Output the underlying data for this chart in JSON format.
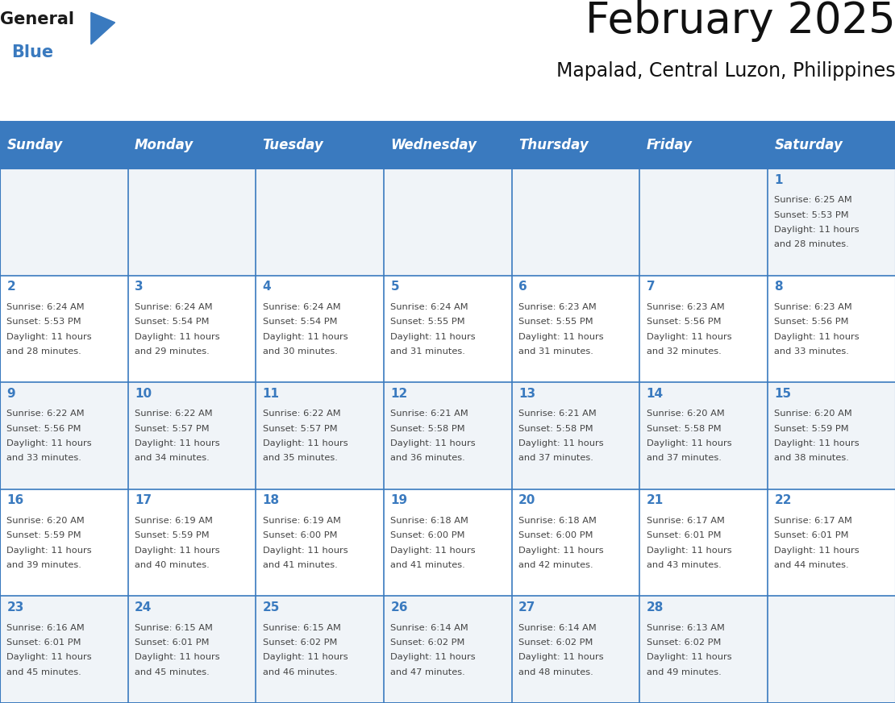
{
  "title": "February 2025",
  "subtitle": "Mapalad, Central Luzon, Philippines",
  "header_color": "#3a7abf",
  "header_text_color": "#ffffff",
  "cell_bg_color": "#ffffff",
  "cell_bg_alt": "#f0f4f8",
  "border_color": "#3a7abf",
  "text_color": "#444444",
  "day_headers": [
    "Sunday",
    "Monday",
    "Tuesday",
    "Wednesday",
    "Thursday",
    "Friday",
    "Saturday"
  ],
  "calendar_data": [
    [
      null,
      null,
      null,
      null,
      null,
      null,
      {
        "day": 1,
        "sunrise": "6:25 AM",
        "sunset": "5:53 PM",
        "daylight": "11 hours and 28 minutes."
      }
    ],
    [
      {
        "day": 2,
        "sunrise": "6:24 AM",
        "sunset": "5:53 PM",
        "daylight": "11 hours and 28 minutes."
      },
      {
        "day": 3,
        "sunrise": "6:24 AM",
        "sunset": "5:54 PM",
        "daylight": "11 hours and 29 minutes."
      },
      {
        "day": 4,
        "sunrise": "6:24 AM",
        "sunset": "5:54 PM",
        "daylight": "11 hours and 30 minutes."
      },
      {
        "day": 5,
        "sunrise": "6:24 AM",
        "sunset": "5:55 PM",
        "daylight": "11 hours and 31 minutes."
      },
      {
        "day": 6,
        "sunrise": "6:23 AM",
        "sunset": "5:55 PM",
        "daylight": "11 hours and 31 minutes."
      },
      {
        "day": 7,
        "sunrise": "6:23 AM",
        "sunset": "5:56 PM",
        "daylight": "11 hours and 32 minutes."
      },
      {
        "day": 8,
        "sunrise": "6:23 AM",
        "sunset": "5:56 PM",
        "daylight": "11 hours and 33 minutes."
      }
    ],
    [
      {
        "day": 9,
        "sunrise": "6:22 AM",
        "sunset": "5:56 PM",
        "daylight": "11 hours and 33 minutes."
      },
      {
        "day": 10,
        "sunrise": "6:22 AM",
        "sunset": "5:57 PM",
        "daylight": "11 hours and 34 minutes."
      },
      {
        "day": 11,
        "sunrise": "6:22 AM",
        "sunset": "5:57 PM",
        "daylight": "11 hours and 35 minutes."
      },
      {
        "day": 12,
        "sunrise": "6:21 AM",
        "sunset": "5:58 PM",
        "daylight": "11 hours and 36 minutes."
      },
      {
        "day": 13,
        "sunrise": "6:21 AM",
        "sunset": "5:58 PM",
        "daylight": "11 hours and 37 minutes."
      },
      {
        "day": 14,
        "sunrise": "6:20 AM",
        "sunset": "5:58 PM",
        "daylight": "11 hours and 37 minutes."
      },
      {
        "day": 15,
        "sunrise": "6:20 AM",
        "sunset": "5:59 PM",
        "daylight": "11 hours and 38 minutes."
      }
    ],
    [
      {
        "day": 16,
        "sunrise": "6:20 AM",
        "sunset": "5:59 PM",
        "daylight": "11 hours and 39 minutes."
      },
      {
        "day": 17,
        "sunrise": "6:19 AM",
        "sunset": "5:59 PM",
        "daylight": "11 hours and 40 minutes."
      },
      {
        "day": 18,
        "sunrise": "6:19 AM",
        "sunset": "6:00 PM",
        "daylight": "11 hours and 41 minutes."
      },
      {
        "day": 19,
        "sunrise": "6:18 AM",
        "sunset": "6:00 PM",
        "daylight": "11 hours and 41 minutes."
      },
      {
        "day": 20,
        "sunrise": "6:18 AM",
        "sunset": "6:00 PM",
        "daylight": "11 hours and 42 minutes."
      },
      {
        "day": 21,
        "sunrise": "6:17 AM",
        "sunset": "6:01 PM",
        "daylight": "11 hours and 43 minutes."
      },
      {
        "day": 22,
        "sunrise": "6:17 AM",
        "sunset": "6:01 PM",
        "daylight": "11 hours and 44 minutes."
      }
    ],
    [
      {
        "day": 23,
        "sunrise": "6:16 AM",
        "sunset": "6:01 PM",
        "daylight": "11 hours and 45 minutes."
      },
      {
        "day": 24,
        "sunrise": "6:15 AM",
        "sunset": "6:01 PM",
        "daylight": "11 hours and 45 minutes."
      },
      {
        "day": 25,
        "sunrise": "6:15 AM",
        "sunset": "6:02 PM",
        "daylight": "11 hours and 46 minutes."
      },
      {
        "day": 26,
        "sunrise": "6:14 AM",
        "sunset": "6:02 PM",
        "daylight": "11 hours and 47 minutes."
      },
      {
        "day": 27,
        "sunrise": "6:14 AM",
        "sunset": "6:02 PM",
        "daylight": "11 hours and 48 minutes."
      },
      {
        "day": 28,
        "sunrise": "6:13 AM",
        "sunset": "6:02 PM",
        "daylight": "11 hours and 49 minutes."
      },
      null
    ]
  ],
  "logo_color_general": "#1a1a1a",
  "logo_color_blue": "#3a7abf",
  "title_fontsize": 38,
  "subtitle_fontsize": 17,
  "header_fontsize": 12,
  "day_num_fontsize": 11,
  "cell_text_fontsize": 8.2
}
